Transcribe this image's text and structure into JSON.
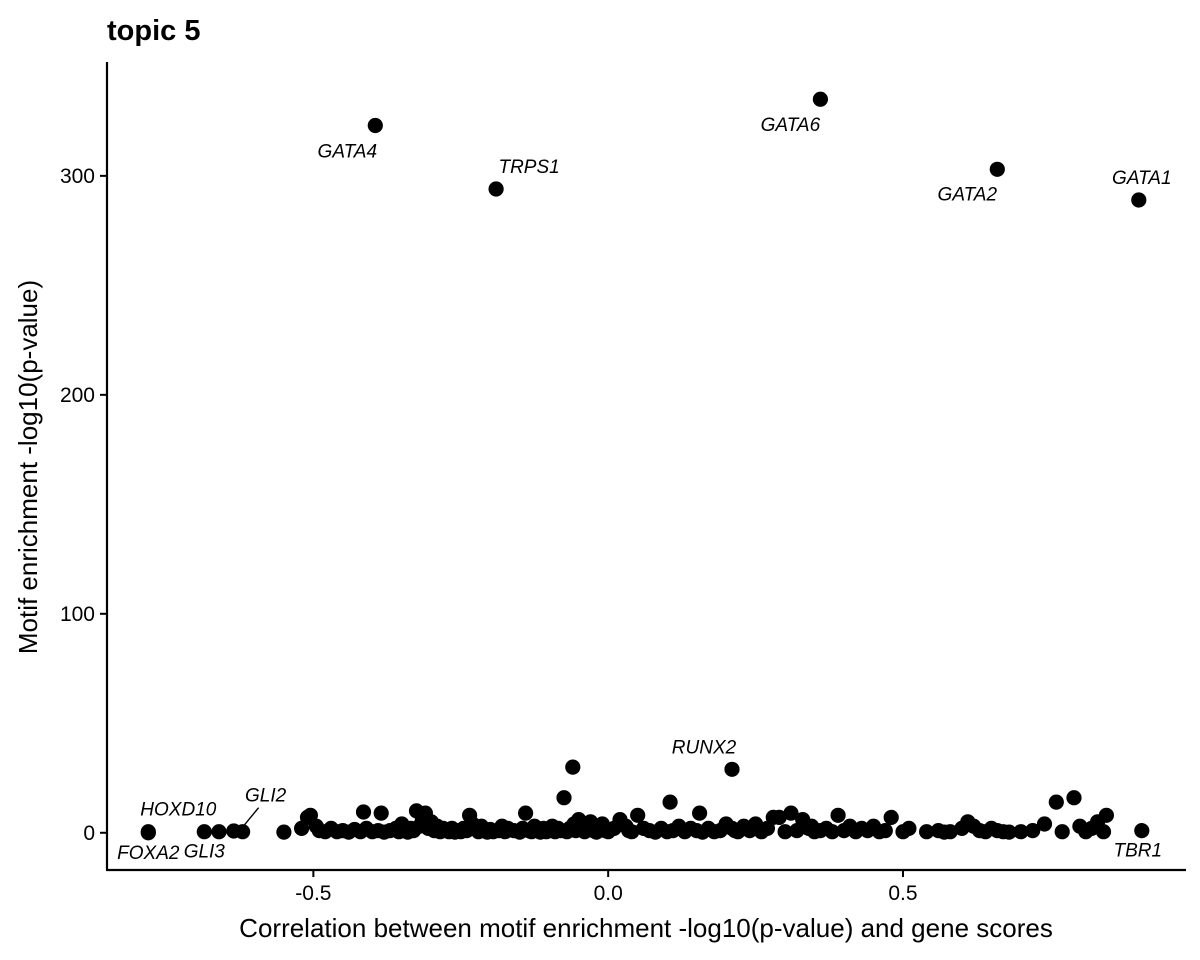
{
  "chart_data": {
    "type": "scatter",
    "title": "topic 5",
    "xlabel": "Correlation between motif enrichment -log10(p-value) and gene scores",
    "ylabel": "Motif enrichment -log10(p-value)",
    "xlim": [
      -0.85,
      0.98
    ],
    "ylim": [
      -17,
      352
    ],
    "x_ticks": [
      -0.5,
      0.0,
      0.5
    ],
    "x_tick_labels": [
      "-0.5",
      "0.0",
      "0.5"
    ],
    "y_ticks": [
      0,
      100,
      200,
      300
    ],
    "y_tick_labels": [
      "0",
      "100",
      "200",
      "300"
    ],
    "grid": false,
    "point_color": "#000000",
    "labeled_points": [
      {
        "label": "GATA6",
        "x": 0.36,
        "y": 335
      },
      {
        "label": "GATA4",
        "x": -0.395,
        "y": 323
      },
      {
        "label": "GATA2",
        "x": 0.66,
        "y": 303
      },
      {
        "label": "TRPS1",
        "x": -0.19,
        "y": 294
      },
      {
        "label": "GATA1",
        "x": 0.9,
        "y": 289
      },
      {
        "label": "RUNX2",
        "x": 0.21,
        "y": 29
      },
      {
        "label": "HOXD10",
        "x": -0.78,
        "y": 0.5
      },
      {
        "label": "FOXA2",
        "x": -0.78,
        "y": 0
      },
      {
        "label": "GLI3",
        "x": -0.685,
        "y": 0.5
      },
      {
        "label": "GLI2",
        "x": -0.62,
        "y": 0.5
      },
      {
        "label": "TBR1",
        "x": 0.905,
        "y": 1
      }
    ],
    "points": [
      [
        -0.66,
        0.5
      ],
      [
        -0.635,
        0.8
      ],
      [
        -0.55,
        0.3
      ],
      [
        -0.52,
        2
      ],
      [
        -0.51,
        7
      ],
      [
        -0.505,
        8
      ],
      [
        -0.495,
        3
      ],
      [
        -0.49,
        1
      ],
      [
        -0.48,
        0.5
      ],
      [
        -0.47,
        2
      ],
      [
        -0.46,
        0.5
      ],
      [
        -0.45,
        1
      ],
      [
        -0.44,
        0.3
      ],
      [
        -0.43,
        1.5
      ],
      [
        -0.42,
        0.5
      ],
      [
        -0.415,
        9.5
      ],
      [
        -0.41,
        2
      ],
      [
        -0.4,
        0.5
      ],
      [
        -0.39,
        1
      ],
      [
        -0.385,
        9
      ],
      [
        -0.38,
        0.3
      ],
      [
        -0.37,
        1
      ],
      [
        -0.36,
        2
      ],
      [
        -0.355,
        0.5
      ],
      [
        -0.35,
        4
      ],
      [
        -0.345,
        1
      ],
      [
        -0.34,
        0.3
      ],
      [
        -0.335,
        2
      ],
      [
        -0.33,
        1
      ],
      [
        -0.325,
        10
      ],
      [
        -0.32,
        3
      ],
      [
        -0.315,
        6
      ],
      [
        -0.31,
        9
      ],
      [
        -0.305,
        2
      ],
      [
        -0.3,
        5
      ],
      [
        -0.295,
        1
      ],
      [
        -0.29,
        3
      ],
      [
        -0.285,
        0.5
      ],
      [
        -0.28,
        2
      ],
      [
        -0.275,
        1
      ],
      [
        -0.27,
        0.5
      ],
      [
        -0.265,
        2
      ],
      [
        -0.26,
        0.3
      ],
      [
        -0.255,
        1
      ],
      [
        -0.25,
        0.5
      ],
      [
        -0.245,
        2
      ],
      [
        -0.24,
        1
      ],
      [
        -0.235,
        8
      ],
      [
        -0.23,
        4
      ],
      [
        -0.225,
        2
      ],
      [
        -0.22,
        0.5
      ],
      [
        -0.215,
        3
      ],
      [
        -0.21,
        1
      ],
      [
        -0.205,
        0.3
      ],
      [
        -0.2,
        1.5
      ],
      [
        -0.195,
        0.5
      ],
      [
        -0.185,
        1
      ],
      [
        -0.18,
        3
      ],
      [
        -0.175,
        0.5
      ],
      [
        -0.17,
        2
      ],
      [
        -0.16,
        1
      ],
      [
        -0.15,
        0.3
      ],
      [
        -0.145,
        2
      ],
      [
        -0.14,
        9
      ],
      [
        -0.135,
        1
      ],
      [
        -0.13,
        0.5
      ],
      [
        -0.125,
        3
      ],
      [
        -0.12,
        1
      ],
      [
        -0.115,
        0.3
      ],
      [
        -0.11,
        2
      ],
      [
        -0.105,
        0.5
      ],
      [
        -0.1,
        1
      ],
      [
        -0.095,
        3
      ],
      [
        -0.09,
        0.5
      ],
      [
        -0.085,
        2
      ],
      [
        -0.08,
        1
      ],
      [
        -0.075,
        16
      ],
      [
        -0.07,
        0.5
      ],
      [
        -0.065,
        2
      ],
      [
        -0.06,
        30
      ],
      [
        -0.058,
        4
      ],
      [
        -0.055,
        1
      ],
      [
        -0.05,
        6
      ],
      [
        -0.045,
        2
      ],
      [
        -0.04,
        0.5
      ],
      [
        -0.035,
        3
      ],
      [
        -0.03,
        5
      ],
      [
        -0.025,
        1
      ],
      [
        -0.02,
        0.3
      ],
      [
        -0.015,
        2
      ],
      [
        -0.01,
        4
      ],
      [
        -0.005,
        1
      ],
      [
        0.0,
        0.5
      ],
      [
        0.01,
        2
      ],
      [
        0.02,
        6
      ],
      [
        0.03,
        3
      ],
      [
        0.035,
        1
      ],
      [
        0.04,
        0.5
      ],
      [
        0.05,
        8
      ],
      [
        0.06,
        2
      ],
      [
        0.07,
        1
      ],
      [
        0.08,
        0.3
      ],
      [
        0.09,
        2
      ],
      [
        0.1,
        0.5
      ],
      [
        0.105,
        14
      ],
      [
        0.11,
        1
      ],
      [
        0.12,
        3
      ],
      [
        0.13,
        0.5
      ],
      [
        0.14,
        2
      ],
      [
        0.15,
        1
      ],
      [
        0.155,
        9
      ],
      [
        0.16,
        0.3
      ],
      [
        0.17,
        2
      ],
      [
        0.18,
        0.5
      ],
      [
        0.19,
        1
      ],
      [
        0.2,
        4
      ],
      [
        0.21,
        2
      ],
      [
        0.215,
        1
      ],
      [
        0.22,
        0.5
      ],
      [
        0.23,
        3
      ],
      [
        0.24,
        1
      ],
      [
        0.25,
        4
      ],
      [
        0.26,
        0.5
      ],
      [
        0.27,
        2
      ],
      [
        0.28,
        7
      ],
      [
        0.29,
        7
      ],
      [
        0.3,
        0.5
      ],
      [
        0.31,
        9
      ],
      [
        0.32,
        1
      ],
      [
        0.33,
        6
      ],
      [
        0.34,
        2
      ],
      [
        0.345,
        3
      ],
      [
        0.35,
        0.5
      ],
      [
        0.36,
        1
      ],
      [
        0.37,
        2
      ],
      [
        0.38,
        0.5
      ],
      [
        0.39,
        8
      ],
      [
        0.4,
        1
      ],
      [
        0.41,
        3
      ],
      [
        0.42,
        0.5
      ],
      [
        0.43,
        2
      ],
      [
        0.44,
        1
      ],
      [
        0.45,
        3
      ],
      [
        0.46,
        0.5
      ],
      [
        0.47,
        1
      ],
      [
        0.48,
        7
      ],
      [
        0.5,
        0.5
      ],
      [
        0.51,
        2
      ],
      [
        0.54,
        0.5
      ],
      [
        0.56,
        1
      ],
      [
        0.57,
        0.3
      ],
      [
        0.58,
        0.5
      ],
      [
        0.6,
        2
      ],
      [
        0.61,
        5
      ],
      [
        0.62,
        3
      ],
      [
        0.63,
        1
      ],
      [
        0.64,
        0.5
      ],
      [
        0.65,
        2
      ],
      [
        0.66,
        1
      ],
      [
        0.67,
        0.5
      ],
      [
        0.68,
        0.3
      ],
      [
        0.7,
        0.5
      ],
      [
        0.72,
        1
      ],
      [
        0.74,
        4
      ],
      [
        0.76,
        14
      ],
      [
        0.77,
        0.5
      ],
      [
        0.79,
        16
      ],
      [
        0.8,
        3
      ],
      [
        0.81,
        0.5
      ],
      [
        0.82,
        2
      ],
      [
        0.83,
        5
      ],
      [
        0.84,
        0.5
      ],
      [
        0.845,
        8
      ]
    ]
  }
}
